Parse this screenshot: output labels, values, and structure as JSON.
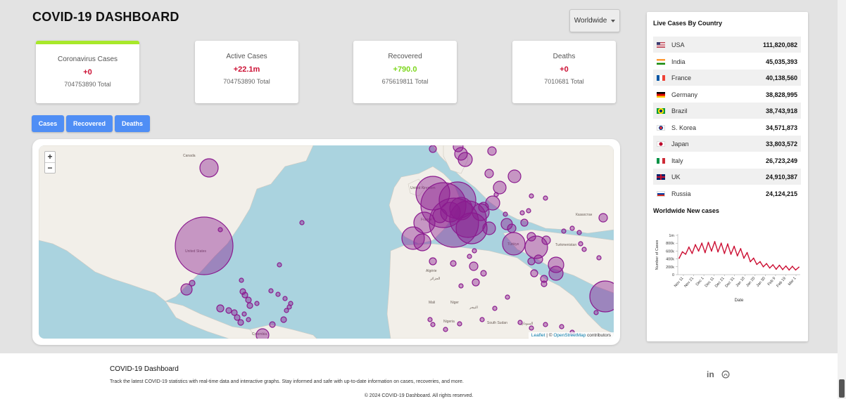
{
  "header": {
    "title": "COVID-19 DASHBOARD"
  },
  "region_select": {
    "value": "Worldwide"
  },
  "stats": [
    {
      "title": "Coronavirus Cases",
      "value": "+0",
      "total": "704753890 Total",
      "value_color": "#cc1034"
    },
    {
      "title": "Active Cases",
      "value": "+22.1m",
      "total": "704753890 Total",
      "value_color": "#cc1034"
    },
    {
      "title": "Recovered",
      "value": "+790.0",
      "total": "675619811 Total",
      "value_color": "#7dd71d"
    },
    {
      "title": "Deaths",
      "value": "+0",
      "total": "7010681 Total",
      "value_color": "#cc1034"
    }
  ],
  "case_type_buttons": [
    "Cases",
    "Recovered",
    "Deaths"
  ],
  "map": {
    "zoom_in": "+",
    "zoom_out": "−",
    "labels": {
      "canada": "Canada",
      "us": "United States",
      "uk": "United Kingdom",
      "france": "France",
      "algerie": "Algérie",
      "algerie_ar": "الجزائر",
      "mali": "Mali",
      "niger": "Niger",
      "niger_ar": "النيجر",
      "turkey": "Türkiye",
      "turkmen": "Turkmenistan",
      "kazakh": "Казахстан",
      "sudan": "السودان",
      "south_sudan": "South Sudan",
      "nigeria": "Nigeria",
      "colombia": "Colombia"
    },
    "attribution": {
      "leaflet": "Leaflet",
      "sep": " | © ",
      "osm": "OpenStreetMap",
      "suffix": " contributors"
    },
    "bubble_color": "#8b1b8f"
  },
  "sidebar": {
    "title": "Live Cases By Country",
    "countries": [
      {
        "name": "USA",
        "cases": "111,820,082",
        "flag": "us-flag-icon"
      },
      {
        "name": "India",
        "cases": "45,035,393",
        "flag": "india-flag-icon"
      },
      {
        "name": "France",
        "cases": "40,138,560",
        "flag": "france-flag-icon"
      },
      {
        "name": "Germany",
        "cases": "38,828,995",
        "flag": "germany-flag-icon"
      },
      {
        "name": "Brazil",
        "cases": "38,743,918",
        "flag": "brazil-flag-icon"
      },
      {
        "name": "S. Korea",
        "cases": "34,571,873",
        "flag": "korea-flag-icon"
      },
      {
        "name": "Japan",
        "cases": "33,803,572",
        "flag": "japan-flag-icon"
      },
      {
        "name": "Italy",
        "cases": "26,723,249",
        "flag": "italy-flag-icon"
      },
      {
        "name": "UK",
        "cases": "24,910,387",
        "flag": "uk-flag-icon"
      },
      {
        "name": "Russia",
        "cases": "24,124,215",
        "flag": "russia-flag-icon"
      }
    ],
    "chart_title": "Worldwide New cases"
  },
  "chart_data": {
    "type": "line",
    "title": "Worldwide New cases",
    "xlabel": "Date",
    "ylabel": "Number of Cases",
    "yticks": [
      "0",
      "200k",
      "400k",
      "600k",
      "800k",
      "1m"
    ],
    "ylim": [
      0,
      1000000
    ],
    "xticks": [
      "Nov 11",
      "Nov 21",
      "Dec 1",
      "Dec 11",
      "Dec 21",
      "Dec 31",
      "Jan 10",
      "Jan 20",
      "Jan 30",
      "Feb 9",
      "Feb 19",
      "Mar 1"
    ],
    "series": [
      {
        "color": "#cc1034",
        "values": [
          420000,
          580000,
          520000,
          700000,
          540000,
          760000,
          600000,
          800000,
          560000,
          820000,
          600000,
          840000,
          580000,
          800000,
          540000,
          780000,
          520000,
          720000,
          480000,
          660000,
          420000,
          560000,
          330000,
          420000,
          260000,
          330000,
          200000,
          280000,
          170000,
          250000,
          140000,
          240000,
          130000,
          220000,
          120000,
          210000,
          120000,
          190000
        ]
      }
    ],
    "grid": false
  },
  "footer": {
    "title": "COVID-19 Dashboard",
    "description": "Track the latest COVID-19 statistics with real-time data and interactive graphs. Stay informed and safe with up-to-date information on cases, recoveries, and more.",
    "copyright": "© 2024 COVID-19 Dashboard. All rights reserved.",
    "linkedin": "in"
  }
}
